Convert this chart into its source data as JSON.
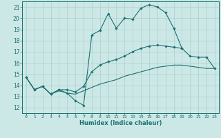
{
  "xlabel": "Humidex (Indice chaleur)",
  "bg_color": "#cce8e6",
  "grid_color": "#aacfcc",
  "line_color": "#1a7070",
  "xlim": [
    -0.5,
    23.5
  ],
  "ylim": [
    11.5,
    21.5
  ],
  "xticks": [
    0,
    1,
    2,
    3,
    4,
    5,
    6,
    7,
    8,
    9,
    10,
    11,
    12,
    13,
    14,
    15,
    16,
    17,
    18,
    19,
    20,
    21,
    22,
    23
  ],
  "yticks": [
    12,
    13,
    14,
    15,
    16,
    17,
    18,
    19,
    20,
    21
  ],
  "series_max": [
    14.7,
    13.6,
    13.9,
    13.2,
    13.6,
    13.3,
    12.6,
    12.2,
    18.5,
    18.9,
    20.4,
    19.1,
    20.0,
    19.9,
    20.9,
    21.2,
    21.0,
    20.5,
    19.1,
    17.3,
    null,
    null,
    null,
    null
  ],
  "series_mean": [
    14.7,
    13.6,
    13.9,
    13.2,
    13.6,
    13.6,
    13.4,
    13.9,
    15.2,
    15.8,
    16.1,
    16.3,
    16.6,
    17.0,
    17.3,
    17.5,
    17.6,
    17.5,
    17.4,
    17.3,
    16.6,
    16.5,
    16.5,
    15.5
  ],
  "series_min": [
    14.7,
    13.6,
    13.9,
    13.2,
    13.5,
    13.3,
    13.2,
    13.5,
    13.8,
    14.1,
    14.3,
    14.5,
    14.8,
    15.0,
    15.2,
    15.4,
    15.6,
    15.7,
    15.8,
    15.8,
    15.7,
    15.6,
    15.5,
    15.5
  ],
  "x_values": [
    0,
    1,
    2,
    3,
    4,
    5,
    6,
    7,
    8,
    9,
    10,
    11,
    12,
    13,
    14,
    15,
    16,
    17,
    18,
    19,
    20,
    21,
    22,
    23
  ]
}
